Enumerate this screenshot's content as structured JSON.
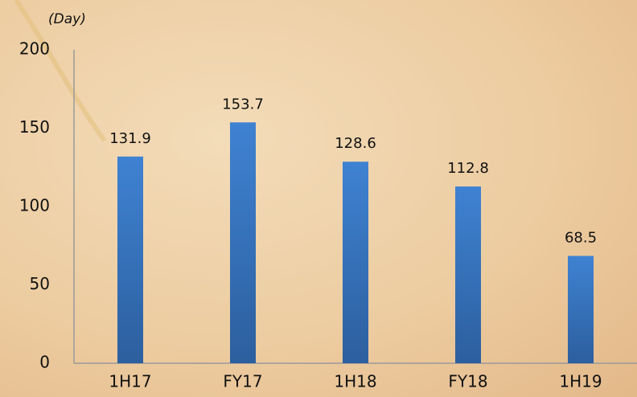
{
  "chart_data": {
    "type": "bar",
    "y_label": "(Day)",
    "categories": [
      "1H17",
      "FY17",
      "1H18",
      "FY18",
      "1H19"
    ],
    "values": [
      131.9,
      153.7,
      128.6,
      112.8,
      68.5
    ],
    "color": "#3a78c4",
    "ylim": [
      0,
      200
    ],
    "yticks": [
      0,
      50,
      100,
      150,
      200
    ],
    "grid": false
  }
}
